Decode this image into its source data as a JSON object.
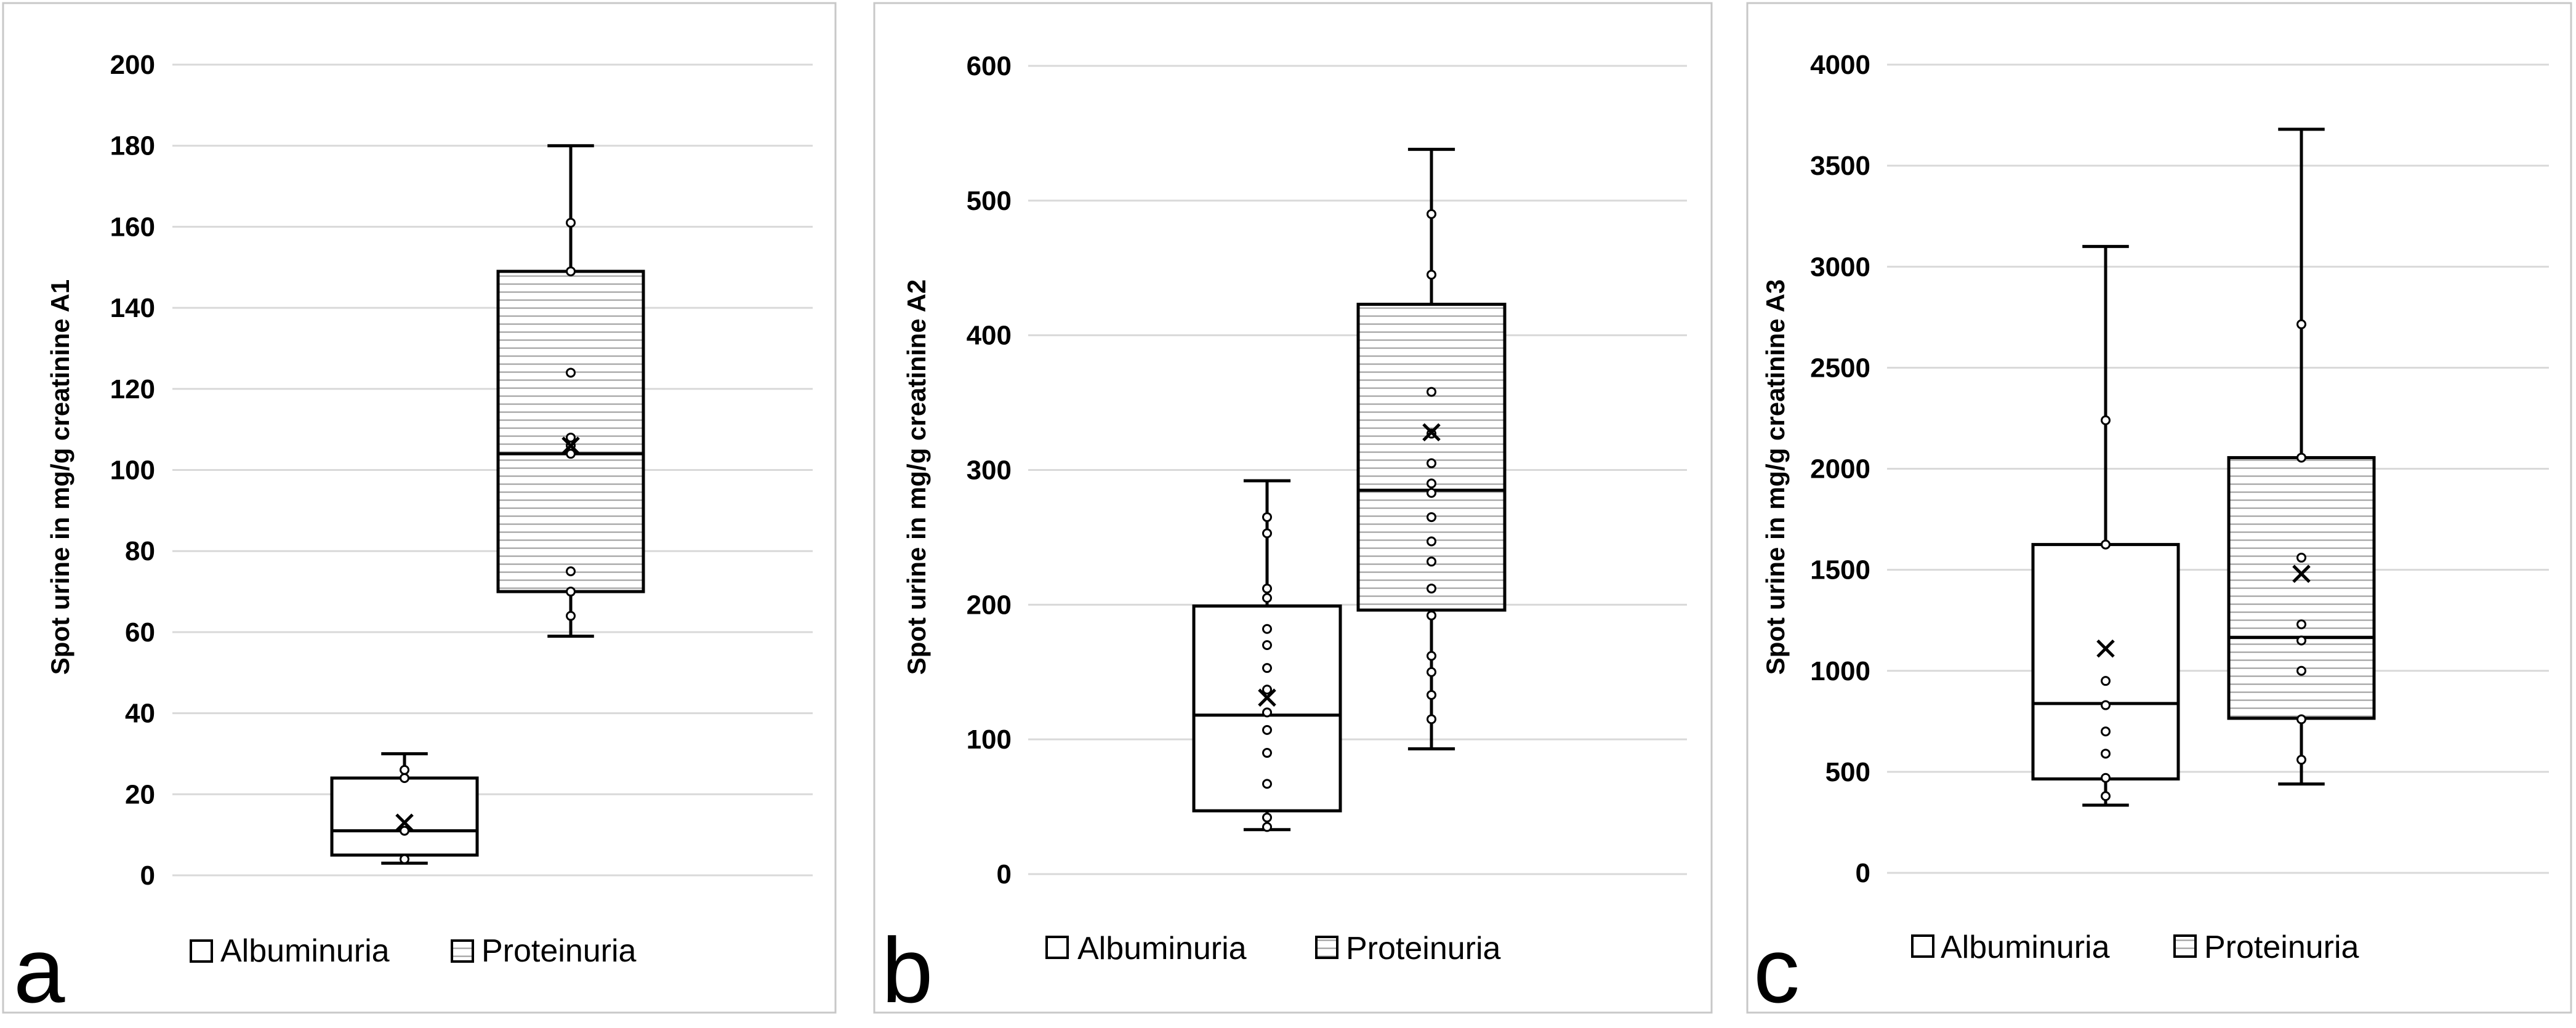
{
  "figure": {
    "legend": {
      "albuminuria_label": "Albuminuria",
      "proteinuria_label": "Proteinuria"
    }
  },
  "chart_data": [
    {
      "type": "boxplot",
      "panel_label": "a",
      "ylabel": "Spot urine in mg/g creatinine A1",
      "xlabel": "",
      "ylim": [
        0,
        200
      ],
      "yticks": [
        0,
        20,
        40,
        60,
        80,
        100,
        120,
        140,
        160,
        180,
        200
      ],
      "grid": true,
      "legend_position": "bottom",
      "series": [
        {
          "name": "Albuminuria",
          "pattern": "none",
          "min": 3,
          "q1": 5,
          "median": 11,
          "q3": 24,
          "max": 30,
          "mean": 13,
          "points": [
            4,
            11,
            24,
            26
          ]
        },
        {
          "name": "Proteinuria",
          "pattern": "horizontal-lines",
          "min": 59,
          "q1": 70,
          "median": 104,
          "q3": 149,
          "max": 180,
          "mean": 106,
          "points": [
            64,
            70,
            75,
            104,
            106,
            108,
            124,
            149,
            161
          ]
        }
      ]
    },
    {
      "type": "boxplot",
      "panel_label": "b",
      "ylabel": "Spot urine in mg/g creatinine A2",
      "xlabel": "",
      "ylim": [
        0,
        600
      ],
      "yticks": [
        0,
        100,
        200,
        300,
        400,
        500,
        600
      ],
      "grid": true,
      "legend_position": "bottom",
      "series": [
        {
          "name": "Albuminuria",
          "pattern": "none",
          "min": 33,
          "q1": 47,
          "median": 118,
          "q3": 199,
          "max": 292,
          "mean": 131,
          "points": [
            35,
            42,
            67,
            90,
            107,
            120,
            137,
            153,
            170,
            182,
            205,
            212,
            253,
            265
          ]
        },
        {
          "name": "Proteinuria",
          "pattern": "horizontal-lines",
          "min": 93,
          "q1": 196,
          "median": 285,
          "q3": 423,
          "max": 538,
          "mean": 328,
          "points": [
            115,
            133,
            150,
            162,
            192,
            212,
            232,
            247,
            265,
            283,
            290,
            305,
            327,
            358,
            445,
            490
          ]
        }
      ]
    },
    {
      "type": "boxplot",
      "panel_label": "c",
      "ylabel": "Spot urine in mg/g creatinine A3",
      "xlabel": "",
      "ylim": [
        0,
        4000
      ],
      "yticks": [
        0,
        500,
        1000,
        1500,
        2000,
        2500,
        3000,
        3500,
        4000
      ],
      "grid": true,
      "legend_position": "bottom",
      "series": [
        {
          "name": "Albuminuria",
          "pattern": "none",
          "min": 335,
          "q1": 465,
          "median": 838,
          "q3": 1625,
          "max": 3100,
          "mean": 1110,
          "points": [
            380,
            470,
            590,
            700,
            830,
            950,
            1625,
            2240
          ]
        },
        {
          "name": "Proteinuria",
          "pattern": "horizontal-lines",
          "min": 440,
          "q1": 765,
          "median": 1165,
          "q3": 2055,
          "max": 3680,
          "mean": 1480,
          "points": [
            560,
            760,
            1000,
            1150,
            1230,
            1560,
            2055,
            2715
          ]
        }
      ]
    }
  ]
}
